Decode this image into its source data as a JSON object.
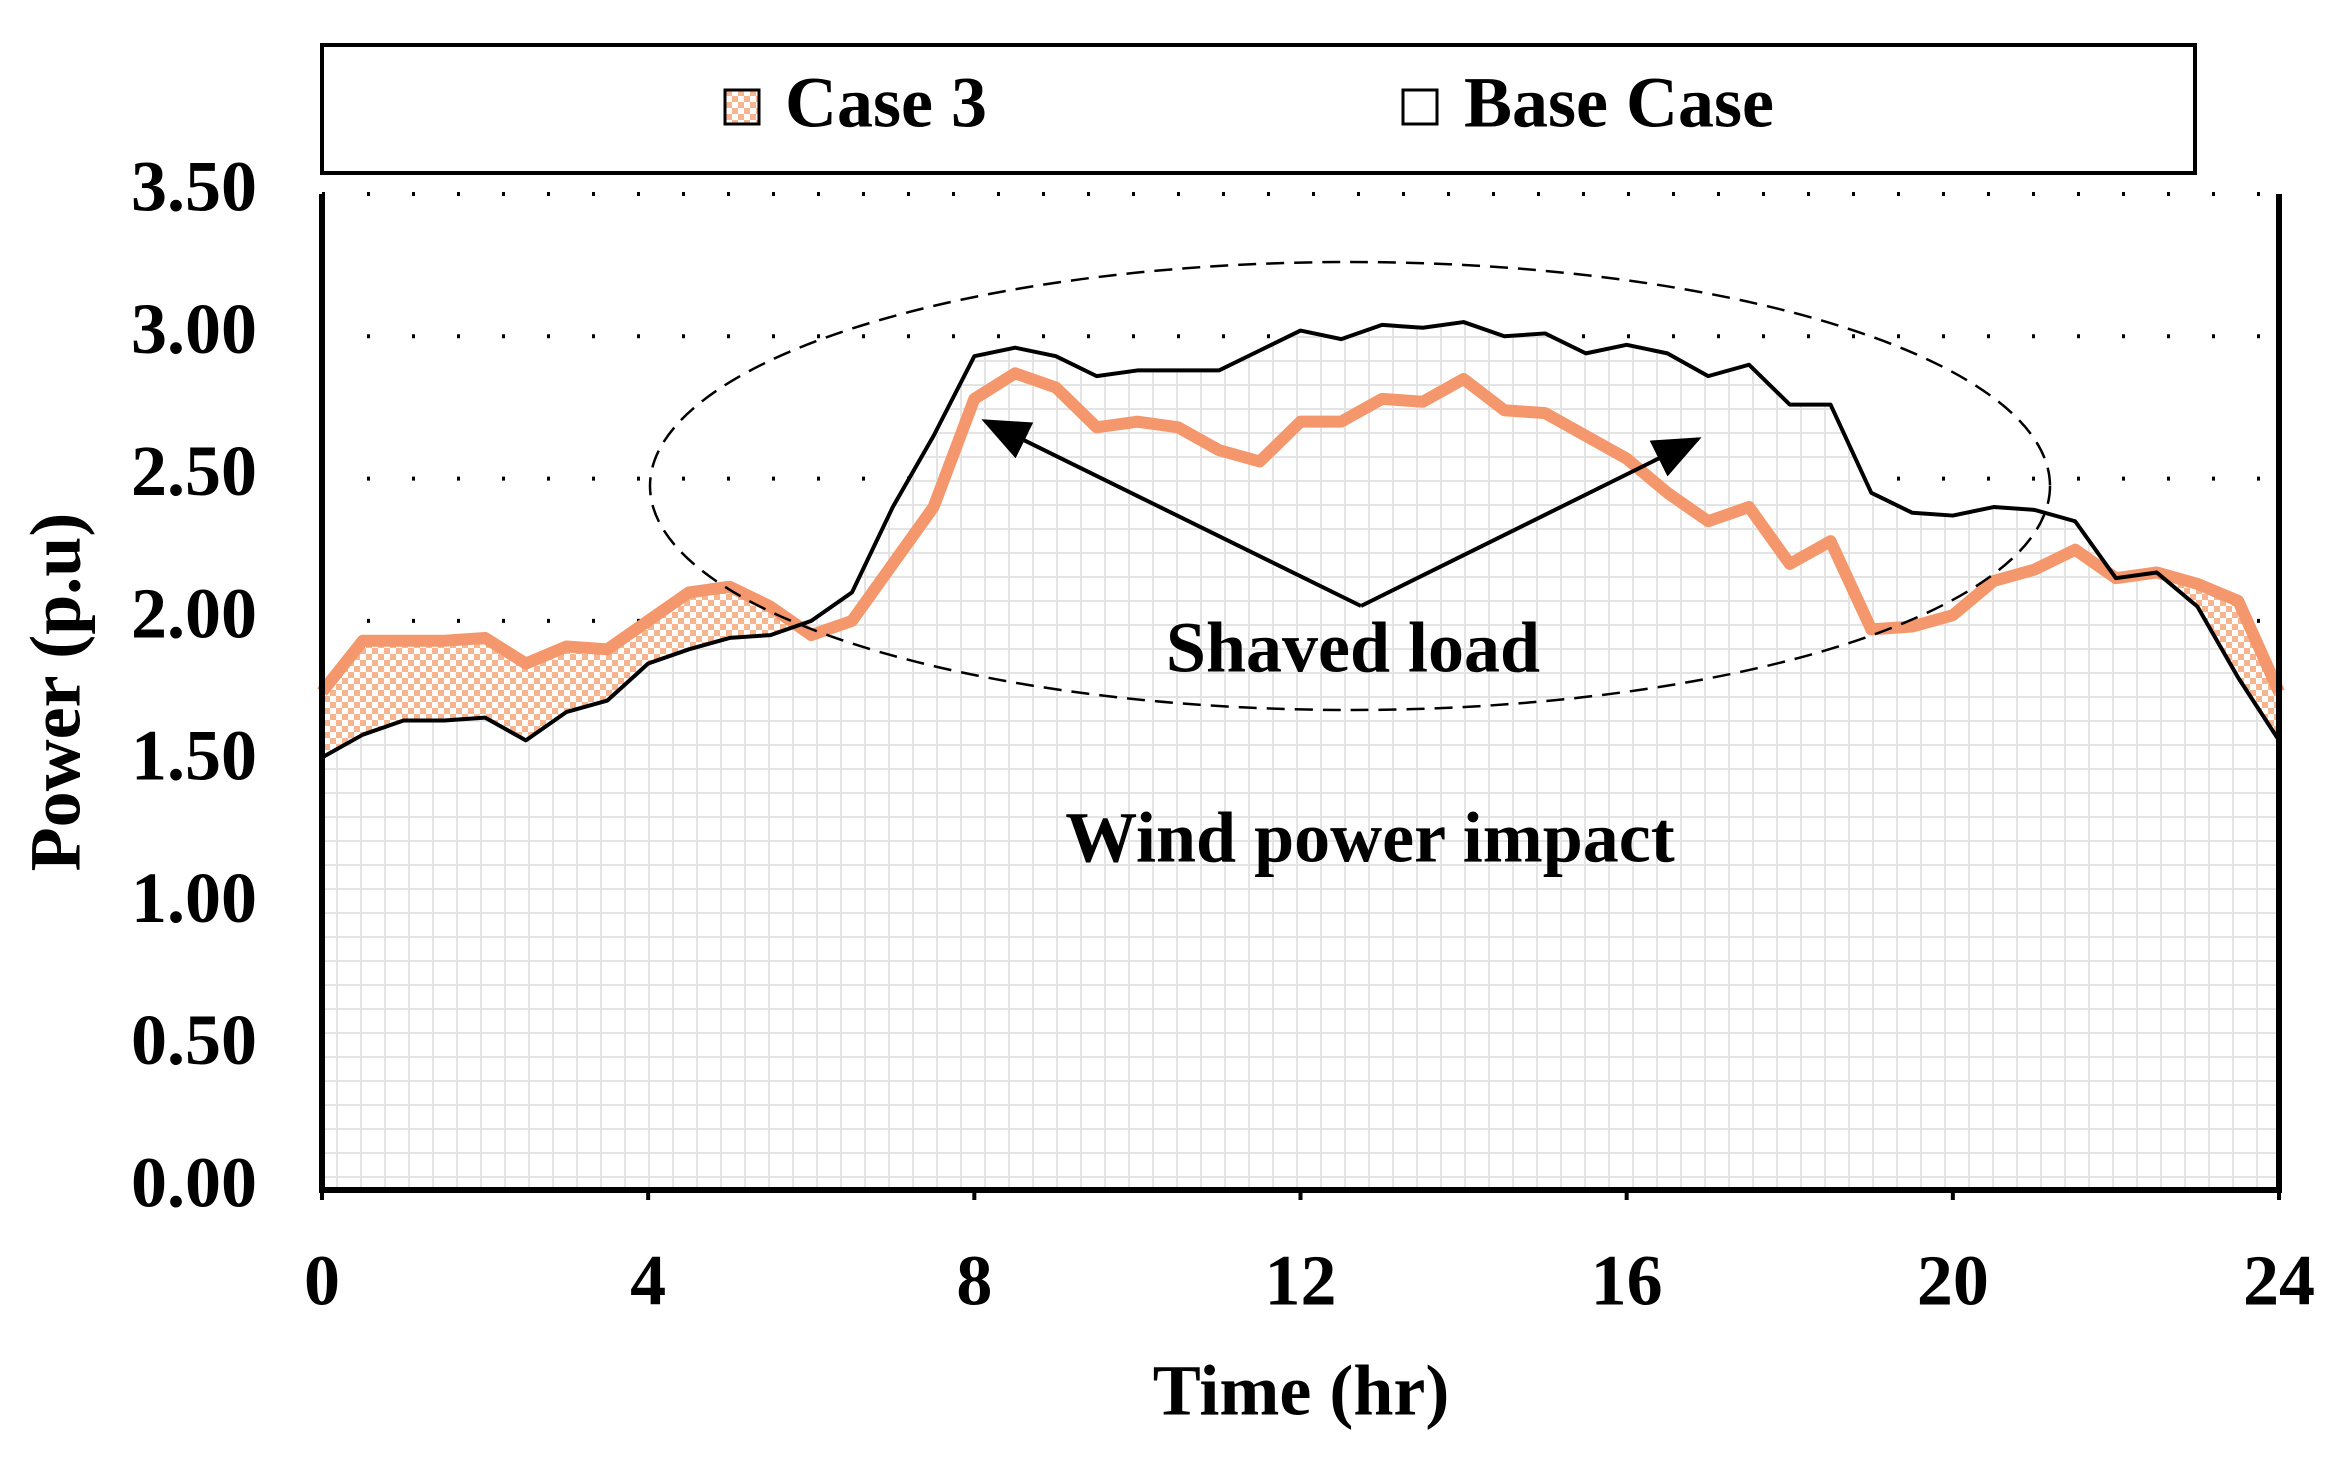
{
  "chart_data": {
    "type": "area",
    "x_label": "Time  (hr)",
    "y_label": "Power (p.u)",
    "annotations": [
      "Shaved load",
      "Wind power impact"
    ],
    "x": [
      0,
      0.5,
      1,
      1.5,
      2,
      2.5,
      3,
      3.5,
      4,
      4.5,
      5,
      5.5,
      6,
      6.5,
      7,
      7.5,
      8,
      8.5,
      9,
      9.5,
      10,
      10.5,
      11,
      11.5,
      12,
      12.5,
      13,
      13.5,
      14,
      14.5,
      15,
      15.5,
      16,
      16.5,
      17,
      17.5,
      18,
      18.5,
      19,
      19.5,
      20,
      20.5,
      21,
      21.5,
      22,
      22.5,
      23,
      23.5,
      24
    ],
    "series": [
      {
        "name": "Case 3",
        "color": "#f4976c",
        "values": [
          1.75,
          1.93,
          1.93,
          1.93,
          1.94,
          1.85,
          1.91,
          1.9,
          2.0,
          2.1,
          2.12,
          2.05,
          1.95,
          2.0,
          2.2,
          2.4,
          2.78,
          2.87,
          2.82,
          2.68,
          2.7,
          2.68,
          2.6,
          2.56,
          2.7,
          2.7,
          2.78,
          2.77,
          2.85,
          2.74,
          2.73,
          2.65,
          2.57,
          2.45,
          2.35,
          2.4,
          2.2,
          2.28,
          1.97,
          1.98,
          2.02,
          2.14,
          2.18,
          2.25,
          2.15,
          2.17,
          2.13,
          2.07,
          1.75
        ]
      },
      {
        "name": "Base Case",
        "color": "#000000",
        "values": [
          1.52,
          1.6,
          1.65,
          1.65,
          1.66,
          1.58,
          1.68,
          1.72,
          1.85,
          1.9,
          1.94,
          1.95,
          2.0,
          2.1,
          2.4,
          2.65,
          2.93,
          2.96,
          2.93,
          2.86,
          2.88,
          2.88,
          2.88,
          2.95,
          3.02,
          2.99,
          3.04,
          3.03,
          3.05,
          3.0,
          3.01,
          2.94,
          2.97,
          2.94,
          2.86,
          2.9,
          2.76,
          2.76,
          2.45,
          2.38,
          2.37,
          2.4,
          2.39,
          2.35,
          2.15,
          2.17,
          2.05,
          1.8,
          1.58
        ]
      }
    ],
    "xlim": [
      0,
      24
    ],
    "xticks": [
      0,
      4,
      8,
      12,
      16,
      20,
      24
    ],
    "ylim": [
      0,
      3.5
    ],
    "yticks": [
      {
        "value": 0,
        "label": "0.00"
      },
      {
        "value": 0.5,
        "label": "0.50"
      },
      {
        "value": 1,
        "label": "1.00"
      },
      {
        "value": 1.5,
        "label": "1.50"
      },
      {
        "value": 2,
        "label": "2.00"
      },
      {
        "value": 2.5,
        "label": "2.50"
      },
      {
        "value": 3,
        "label": "3.00"
      },
      {
        "value": 3.5,
        "label": "3.50"
      }
    ],
    "grid": true
  }
}
